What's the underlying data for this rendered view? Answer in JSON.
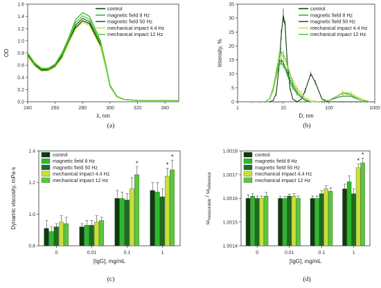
{
  "chart_data": [
    {
      "panel": "(a)",
      "type": "line",
      "xlabel": "λ, nm",
      "ylabel": "OD",
      "xlim": [
        240,
        350
      ],
      "ylim": [
        0,
        1.6
      ],
      "xticks": [
        240,
        260,
        280,
        300,
        320,
        340
      ],
      "yticks": [
        0.0,
        0.2,
        0.4,
        0.6,
        0.8,
        1.0,
        1.2,
        1.4,
        1.6
      ],
      "legend_position": "top-right",
      "series": [
        {
          "name": "control",
          "color": "#0d3b0d",
          "x": [
            240,
            245,
            250,
            255,
            260,
            265,
            270,
            275,
            280,
            285,
            290,
            293,
            297,
            300,
            305,
            310,
            320,
            330,
            340,
            350
          ],
          "y": [
            0.75,
            0.6,
            0.52,
            0.52,
            0.58,
            0.74,
            0.98,
            1.22,
            1.33,
            1.28,
            1.05,
            0.92,
            0.55,
            0.25,
            0.08,
            0.04,
            0.02,
            0.02,
            0.02,
            0.02
          ]
        },
        {
          "name": "magnetic field 8 Hz",
          "color": "#2db82d",
          "x": [
            240,
            245,
            250,
            255,
            260,
            265,
            270,
            275,
            280,
            285,
            290,
            293,
            297,
            300,
            305,
            310,
            320,
            330,
            340,
            350
          ],
          "y": [
            0.8,
            0.64,
            0.55,
            0.55,
            0.62,
            0.8,
            1.06,
            1.35,
            1.46,
            1.4,
            1.15,
            1.0,
            0.6,
            0.27,
            0.09,
            0.04,
            0.02,
            0.02,
            0.02,
            0.02
          ]
        },
        {
          "name": "magnetic field 50 Hz",
          "color": "#1e6b1e",
          "x": [
            240,
            245,
            250,
            255,
            260,
            265,
            270,
            275,
            280,
            285,
            290,
            293,
            297,
            300,
            305,
            310,
            320,
            330,
            340,
            350
          ],
          "y": [
            0.77,
            0.62,
            0.53,
            0.53,
            0.6,
            0.76,
            1.0,
            1.26,
            1.37,
            1.31,
            1.08,
            0.95,
            0.57,
            0.26,
            0.08,
            0.04,
            0.02,
            0.02,
            0.02,
            0.02
          ]
        },
        {
          "name": "mechanical impact 4.4 Hz",
          "color": "#c9e03a",
          "x": [
            240,
            245,
            250,
            255,
            260,
            265,
            270,
            275,
            280,
            285,
            290,
            293,
            297,
            300,
            305,
            310,
            320,
            330,
            340,
            350
          ],
          "y": [
            0.74,
            0.59,
            0.5,
            0.51,
            0.57,
            0.72,
            0.97,
            1.2,
            1.3,
            1.25,
            1.03,
            0.9,
            0.54,
            0.25,
            0.08,
            0.04,
            0.02,
            0.02,
            0.02,
            0.02
          ]
        },
        {
          "name": "mechanical impact 12 Hz",
          "color": "#5cc73a",
          "x": [
            240,
            245,
            250,
            255,
            260,
            265,
            270,
            275,
            280,
            285,
            290,
            293,
            297,
            300,
            305,
            310,
            320,
            330,
            340,
            350
          ],
          "y": [
            0.79,
            0.63,
            0.54,
            0.54,
            0.61,
            0.78,
            1.03,
            1.3,
            1.41,
            1.35,
            1.11,
            0.97,
            0.58,
            0.26,
            0.09,
            0.04,
            0.02,
            0.02,
            0.02,
            0.02
          ]
        }
      ]
    },
    {
      "panel": "(b)",
      "type": "line",
      "xlabel": "D, nm",
      "ylabel": "Intensity, %",
      "xscale": "log",
      "xlim": [
        1,
        1000
      ],
      "ylim": [
        0,
        35
      ],
      "xticks": [
        1,
        10,
        100,
        1000
      ],
      "yticks": [
        0,
        5,
        10,
        15,
        20,
        25,
        30,
        35
      ],
      "legend_position": "top-right",
      "series": [
        {
          "name": "control",
          "color": "#0d3b0d",
          "x": [
            5,
            6,
            7,
            8,
            9,
            10,
            11,
            12,
            14,
            16,
            20,
            25,
            30,
            40,
            50,
            70,
            100,
            200,
            300,
            500
          ],
          "y": [
            0,
            0.5,
            3,
            12,
            24,
            31,
            27,
            16,
            5,
            1,
            0,
            1,
            4,
            10,
            7,
            1,
            0,
            0,
            0,
            0
          ]
        },
        {
          "name": "magnetic field 8 Hz",
          "color": "#2db82d",
          "x": [
            4,
            5,
            6,
            7,
            8,
            9,
            10,
            12,
            14,
            16,
            20,
            25,
            30,
            40,
            60,
            100,
            150,
            200,
            300,
            500,
            800
          ],
          "y": [
            0,
            1,
            4,
            9,
            13,
            14,
            13,
            10,
            7,
            5,
            3,
            1.5,
            0.5,
            0,
            0,
            0.5,
            2,
            3,
            3,
            1,
            0
          ]
        },
        {
          "name": "magnetic field 50 Hz",
          "color": "#1e6b1e",
          "x": [
            4,
            5,
            6,
            7,
            8,
            9,
            10,
            12,
            14,
            16,
            20,
            25,
            30,
            40,
            60,
            100,
            150,
            200,
            300,
            500,
            800
          ],
          "y": [
            0,
            1,
            5,
            10,
            14,
            15,
            14,
            11,
            8,
            6,
            3,
            1.5,
            0.5,
            0,
            0,
            0.5,
            1.5,
            2,
            2,
            0.5,
            0
          ]
        },
        {
          "name": "mechanical impact 4.4 Hz",
          "color": "#c9e03a",
          "x": [
            4,
            5,
            6,
            7,
            8,
            9,
            10,
            12,
            14,
            16,
            20,
            25,
            30,
            40,
            60,
            100,
            150,
            200,
            300,
            500,
            800
          ],
          "y": [
            0,
            1,
            4,
            10,
            15,
            17,
            16,
            13,
            10,
            8,
            5,
            3,
            1.5,
            0.5,
            0,
            0.5,
            2,
            3.5,
            3,
            1,
            0
          ]
        },
        {
          "name": "mechanical impact 12 Hz",
          "color": "#5cc73a",
          "x": [
            4,
            5,
            6,
            7,
            8,
            9,
            10,
            12,
            14,
            16,
            20,
            25,
            30,
            40,
            60,
            100,
            150,
            200,
            300,
            500,
            800
          ],
          "y": [
            0,
            1,
            5,
            11,
            16,
            18,
            17,
            14,
            10,
            7,
            4,
            2,
            1,
            0,
            0,
            0.5,
            2,
            3,
            2.5,
            0.5,
            0
          ]
        }
      ]
    },
    {
      "panel": "(c)",
      "type": "bar",
      "xlabel": "[IgG], mg/mL",
      "ylabel": "Dynamic viscosity, mPa·s",
      "ylim": [
        0.8,
        1.4
      ],
      "yticks": [
        0.8,
        1.0,
        1.2,
        1.4
      ],
      "categories": [
        "0",
        "0.01",
        "0.1",
        "1"
      ],
      "legend_position": "top-left",
      "series": [
        {
          "name": "control",
          "color": "#0d3b0d",
          "values": [
            0.91,
            0.92,
            1.1,
            1.15
          ],
          "errors": [
            0.05,
            0.02,
            0.05,
            0.05
          ]
        },
        {
          "name": "magnetic field 8 Hz",
          "color": "#2db82d",
          "values": [
            0.89,
            0.93,
            1.1,
            1.14
          ],
          "errors": [
            0.03,
            0.03,
            0.04,
            0.06
          ]
        },
        {
          "name": "magnetic field 50 Hz",
          "color": "#1e6b1e",
          "values": [
            0.92,
            0.93,
            1.09,
            1.11
          ],
          "errors": [
            0.02,
            0.03,
            0.04,
            0.05
          ]
        },
        {
          "name": "mechanical impact 4.4 Hz",
          "color": "#c9e03a",
          "values": [
            0.95,
            0.95,
            1.16,
            1.24
          ],
          "errors": [
            0.04,
            0.04,
            0.07,
            0.05
          ]
        },
        {
          "name": "mechanical impact 12 Hz",
          "color": "#5cc73a",
          "values": [
            0.94,
            0.96,
            1.25,
            1.28
          ],
          "errors": [
            0.04,
            0.02,
            0.05,
            0.06
          ]
        }
      ],
      "significance": [
        {
          "category": "0.1",
          "series": "mechanical impact 12 Hz",
          "mark": "*"
        },
        {
          "category": "1",
          "series": "mechanical impact 4.4 Hz",
          "mark": "*"
        },
        {
          "category": "1",
          "series": "mechanical impact 12 Hz",
          "mark": "*"
        }
      ]
    },
    {
      "panel": "(d)",
      "type": "bar",
      "xlabel": "[IgG], mg/mL",
      "ylabel_main": "ω",
      "ylabel_sub1": "measurable",
      "ylabel_mid": " / ω",
      "ylabel_sub2": "reference",
      "ylim": [
        1.0014,
        1.0018
      ],
      "yticks": [
        1.0014,
        1.0015,
        1.0016,
        1.0017,
        1.0018
      ],
      "categories": [
        "0",
        "0.01",
        "0.1",
        "1"
      ],
      "legend_position": "top-left",
      "series": [
        {
          "name": "control",
          "color": "#0d3b0d",
          "values": [
            1.0016,
            1.0016,
            1.0016,
            1.00164
          ],
          "errors": [
            1.5e-05,
            8e-06,
            1e-05,
            2e-05
          ]
        },
        {
          "name": "magnetic field 8 Hz",
          "color": "#2db82d",
          "values": [
            1.00161,
            1.0016,
            1.0016,
            1.00167
          ],
          "errors": [
            1e-05,
            8e-06,
            1e-05,
            2.5e-05
          ]
        },
        {
          "name": "magnetic field 50 Hz",
          "color": "#1e6b1e",
          "values": [
            1.0016,
            1.00161,
            1.00162,
            1.00162
          ],
          "errors": [
            1e-05,
            8e-06,
            1.2e-05,
            2e-05
          ]
        },
        {
          "name": "mechanical impact 4.4 Hz",
          "color": "#c9e03a",
          "values": [
            1.0016,
            1.00161,
            1.00164,
            1.00173
          ],
          "errors": [
            1e-05,
            1e-05,
            1.2e-05,
            1.5e-05
          ]
        },
        {
          "name": "mechanical impact 12 Hz",
          "color": "#5cc73a",
          "values": [
            1.00161,
            1.0016,
            1.00163,
            1.00175
          ],
          "errors": [
            1.5e-05,
            1e-05,
            1.5e-05,
            2e-05
          ]
        }
      ],
      "significance": [
        {
          "category": "1",
          "series": "mechanical impact 4.4 Hz",
          "mark": "*"
        },
        {
          "category": "1",
          "series": "mechanical impact 12 Hz",
          "mark": "*"
        }
      ]
    }
  ]
}
